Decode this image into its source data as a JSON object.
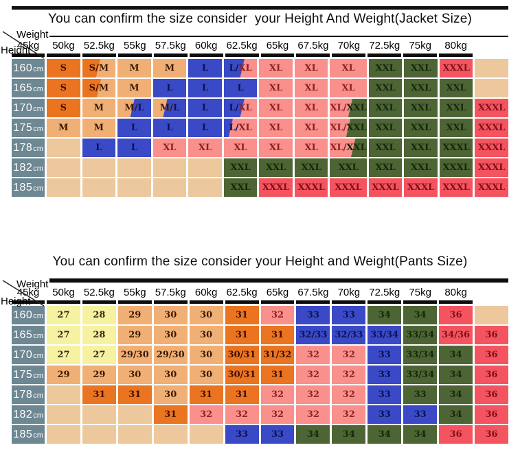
{
  "colors": {
    "bg": {
      "orange": "#EA7420",
      "tan": "#F0AF74",
      "yellow": "#F6F2A2",
      "blue": "#3A49C6",
      "pink": "#F9908C",
      "green": "#4D6534",
      "red": "#F4545F",
      "wheat": "#ECC89C",
      "slate": "#6D8793"
    },
    "text": {
      "orange": "#3F0E02",
      "tan": "#3A1A02",
      "yellow": "#3A2A14",
      "blue": "#0B1150",
      "pink": "#8C2024",
      "green": "#16260C",
      "red": "#7E1119",
      "wheat": "#ECC89C",
      "slate": "#FFFFFF"
    }
  },
  "jacket_table": {
    "title": "You can confirm the size consider  your Height And Weight(Jacket Size)",
    "corner": {
      "weight_label": "Weight",
      "height_label": "Height"
    },
    "height_unit": "cm",
    "weights": [
      "45kg",
      "50kg",
      "52.5kg",
      "55kg",
      "57.5kg",
      "60kg",
      "62.5kg",
      "65kg",
      "67.5kg",
      "70kg",
      "72.5kg",
      "75kg",
      "80kg"
    ],
    "rows": [
      {
        "height": "160",
        "cells": [
          {
            "v": "S",
            "c": "orange"
          },
          {
            "v": "S/M",
            "c": "split-orange-tan",
            "p": 48
          },
          {
            "v": "M",
            "c": "tan"
          },
          {
            "v": "M",
            "c": "tan"
          },
          {
            "v": "L",
            "c": "blue"
          },
          {
            "v": "L/XL",
            "c": "split-blue-pink",
            "p": 55
          },
          {
            "v": "XL",
            "c": "pink"
          },
          {
            "v": "XL",
            "c": "pink"
          },
          {
            "v": "XL",
            "c": "pink"
          },
          {
            "v": "XXL",
            "c": "green"
          },
          {
            "v": "XXL",
            "c": "green"
          },
          {
            "v": "XXXL",
            "c": "red"
          },
          {
            "v": "",
            "c": "wheat"
          }
        ]
      },
      {
        "height": "165",
        "cells": [
          {
            "v": "S",
            "c": "orange"
          },
          {
            "v": "S/M",
            "c": "split-orange-tan",
            "p": 50
          },
          {
            "v": "M",
            "c": "tan"
          },
          {
            "v": "L",
            "c": "blue"
          },
          {
            "v": "L",
            "c": "blue"
          },
          {
            "v": "L",
            "c": "blue"
          },
          {
            "v": "XL",
            "c": "pink"
          },
          {
            "v": "XL",
            "c": "pink"
          },
          {
            "v": "XL",
            "c": "pink"
          },
          {
            "v": "XXL",
            "c": "green"
          },
          {
            "v": "XXL",
            "c": "green"
          },
          {
            "v": "XXL",
            "c": "green"
          },
          {
            "v": "",
            "c": "wheat"
          }
        ]
      },
      {
        "height": "170",
        "cells": [
          {
            "v": "S",
            "c": "orange"
          },
          {
            "v": "M",
            "c": "tan"
          },
          {
            "v": "M/L",
            "c": "split-tan-blue",
            "p": 45
          },
          {
            "v": "M/L",
            "c": "split-tan-blue",
            "p": 38
          },
          {
            "v": "L",
            "c": "blue"
          },
          {
            "v": "L/XL",
            "c": "split-blue-pink",
            "p": 55
          },
          {
            "v": "XL",
            "c": "pink"
          },
          {
            "v": "XL",
            "c": "pink"
          },
          {
            "v": "XL/XXL",
            "c": "split-pink-green",
            "p": 55
          },
          {
            "v": "XXL",
            "c": "green"
          },
          {
            "v": "XXL",
            "c": "green"
          },
          {
            "v": "XXL",
            "c": "green"
          },
          {
            "v": "XXXL",
            "c": "red"
          }
        ]
      },
      {
        "height": "175",
        "cells": [
          {
            "v": "M",
            "c": "tan"
          },
          {
            "v": "M",
            "c": "tan"
          },
          {
            "v": "L",
            "c": "blue"
          },
          {
            "v": "L",
            "c": "blue"
          },
          {
            "v": "L",
            "c": "blue"
          },
          {
            "v": "L/XL",
            "c": "split-blue-pink",
            "p": 24
          },
          {
            "v": "XL",
            "c": "pink"
          },
          {
            "v": "XL",
            "c": "pink"
          },
          {
            "v": "XL/XXL",
            "c": "split-pink-green",
            "p": 50
          },
          {
            "v": "XXL",
            "c": "green"
          },
          {
            "v": "XXL",
            "c": "green"
          },
          {
            "v": "XXL",
            "c": "green"
          },
          {
            "v": "XXXL",
            "c": "red"
          }
        ]
      },
      {
        "height": "178",
        "cells": [
          {
            "v": "",
            "c": "wheat"
          },
          {
            "v": "L",
            "c": "blue"
          },
          {
            "v": "L",
            "c": "blue"
          },
          {
            "v": "XL",
            "c": "pink"
          },
          {
            "v": "XL",
            "c": "pink"
          },
          {
            "v": "XL",
            "c": "pink"
          },
          {
            "v": "XL",
            "c": "pink"
          },
          {
            "v": "XL",
            "c": "pink"
          },
          {
            "v": "XL/XXL",
            "c": "split-pink-green",
            "p": 62
          },
          {
            "v": "XXL",
            "c": "green"
          },
          {
            "v": "XXL",
            "c": "green"
          },
          {
            "v": "XXXL",
            "c": "green"
          },
          {
            "v": "XXXL",
            "c": "red"
          }
        ]
      },
      {
        "height": "182",
        "cells": [
          {
            "v": "",
            "c": "wheat"
          },
          {
            "v": "",
            "c": "wheat"
          },
          {
            "v": "",
            "c": "wheat"
          },
          {
            "v": "",
            "c": "wheat"
          },
          {
            "v": "",
            "c": "wheat"
          },
          {
            "v": "XXL",
            "c": "green"
          },
          {
            "v": "XXL",
            "c": "green"
          },
          {
            "v": "XXL",
            "c": "green"
          },
          {
            "v": "XXL",
            "c": "green"
          },
          {
            "v": "XXL",
            "c": "green"
          },
          {
            "v": "XXL",
            "c": "green"
          },
          {
            "v": "XXXL",
            "c": "green"
          },
          {
            "v": "XXXL",
            "c": "red"
          }
        ]
      },
      {
        "height": "185",
        "cells": [
          {
            "v": "",
            "c": "wheat"
          },
          {
            "v": "",
            "c": "wheat"
          },
          {
            "v": "",
            "c": "wheat"
          },
          {
            "v": "",
            "c": "wheat"
          },
          {
            "v": "",
            "c": "wheat"
          },
          {
            "v": "XXL",
            "c": "green"
          },
          {
            "v": "XXXL",
            "c": "red"
          },
          {
            "v": "XXXL",
            "c": "red"
          },
          {
            "v": "XXXL",
            "c": "red"
          },
          {
            "v": "XXXL",
            "c": "red"
          },
          {
            "v": "XXXL",
            "c": "red"
          },
          {
            "v": "XXXL",
            "c": "red"
          },
          {
            "v": "XXXL",
            "c": "red"
          }
        ]
      }
    ]
  },
  "pants_table": {
    "title": "You can confirm the size consider your Height and Weight(Pants Size)",
    "corner": {
      "weight_label": "Weight",
      "height_label": "Height"
    },
    "height_unit": "cm",
    "weights": [
      "45kg",
      "50kg",
      "52.5kg",
      "55kg",
      "57.5kg",
      "60kg",
      "62.5kg",
      "65kg",
      "67.5kg",
      "70kg",
      "72.5kg",
      "75kg",
      "80kg"
    ],
    "rows": [
      {
        "height": "160",
        "cells": [
          {
            "v": "27",
            "c": "yellow"
          },
          {
            "v": "28",
            "c": "yellow"
          },
          {
            "v": "29",
            "c": "tan"
          },
          {
            "v": "30",
            "c": "tan"
          },
          {
            "v": "30",
            "c": "tan"
          },
          {
            "v": "31",
            "c": "orange"
          },
          {
            "v": "32",
            "c": "pink"
          },
          {
            "v": "33",
            "c": "blue"
          },
          {
            "v": "33",
            "c": "blue"
          },
          {
            "v": "34",
            "c": "green"
          },
          {
            "v": "34",
            "c": "green"
          },
          {
            "v": "36",
            "c": "red"
          },
          {
            "v": "",
            "c": "wheat"
          }
        ]
      },
      {
        "height": "165",
        "cells": [
          {
            "v": "27",
            "c": "yellow"
          },
          {
            "v": "28",
            "c": "yellow"
          },
          {
            "v": "29",
            "c": "tan"
          },
          {
            "v": "30",
            "c": "tan"
          },
          {
            "v": "30",
            "c": "tan"
          },
          {
            "v": "31",
            "c": "orange"
          },
          {
            "v": "31",
            "c": "orange"
          },
          {
            "v": "32/33",
            "c": "blue"
          },
          {
            "v": "32/33",
            "c": "blue"
          },
          {
            "v": "33/34",
            "c": "blue"
          },
          {
            "v": "33/34",
            "c": "green"
          },
          {
            "v": "34/36",
            "c": "red"
          },
          {
            "v": "36",
            "c": "red"
          }
        ]
      },
      {
        "height": "170",
        "cells": [
          {
            "v": "27",
            "c": "yellow"
          },
          {
            "v": "27",
            "c": "yellow"
          },
          {
            "v": "29/30",
            "c": "tan"
          },
          {
            "v": "29/30",
            "c": "tan"
          },
          {
            "v": "30",
            "c": "tan"
          },
          {
            "v": "30/31",
            "c": "orange"
          },
          {
            "v": "31/32",
            "c": "orange"
          },
          {
            "v": "32",
            "c": "pink"
          },
          {
            "v": "32",
            "c": "pink"
          },
          {
            "v": "33",
            "c": "blue"
          },
          {
            "v": "33/34",
            "c": "green"
          },
          {
            "v": "34",
            "c": "green"
          },
          {
            "v": "36",
            "c": "red"
          }
        ]
      },
      {
        "height": "175",
        "cells": [
          {
            "v": "29",
            "c": "tan"
          },
          {
            "v": "29",
            "c": "tan"
          },
          {
            "v": "30",
            "c": "tan"
          },
          {
            "v": "30",
            "c": "tan"
          },
          {
            "v": "30",
            "c": "tan"
          },
          {
            "v": "30/31",
            "c": "orange"
          },
          {
            "v": "31",
            "c": "orange"
          },
          {
            "v": "32",
            "c": "pink"
          },
          {
            "v": "32",
            "c": "pink"
          },
          {
            "v": "33",
            "c": "blue"
          },
          {
            "v": "33/34",
            "c": "green"
          },
          {
            "v": "34",
            "c": "green"
          },
          {
            "v": "36",
            "c": "red"
          }
        ]
      },
      {
        "height": "178",
        "cells": [
          {
            "v": "",
            "c": "wheat"
          },
          {
            "v": "31",
            "c": "orange"
          },
          {
            "v": "31",
            "c": "orange"
          },
          {
            "v": "30",
            "c": "tan"
          },
          {
            "v": "31",
            "c": "orange"
          },
          {
            "v": "31",
            "c": "orange"
          },
          {
            "v": "32",
            "c": "pink"
          },
          {
            "v": "32",
            "c": "pink"
          },
          {
            "v": "32",
            "c": "pink"
          },
          {
            "v": "33",
            "c": "blue"
          },
          {
            "v": "33",
            "c": "green"
          },
          {
            "v": "34",
            "c": "green"
          },
          {
            "v": "36",
            "c": "red"
          }
        ]
      },
      {
        "height": "182",
        "cells": [
          {
            "v": "",
            "c": "wheat"
          },
          {
            "v": "",
            "c": "wheat"
          },
          {
            "v": "",
            "c": "wheat"
          },
          {
            "v": "31",
            "c": "orange"
          },
          {
            "v": "32",
            "c": "pink"
          },
          {
            "v": "32",
            "c": "pink"
          },
          {
            "v": "32",
            "c": "pink"
          },
          {
            "v": "32",
            "c": "pink"
          },
          {
            "v": "32",
            "c": "pink"
          },
          {
            "v": "33",
            "c": "blue"
          },
          {
            "v": "33",
            "c": "blue"
          },
          {
            "v": "34",
            "c": "green"
          },
          {
            "v": "36",
            "c": "red"
          }
        ]
      },
      {
        "height": "185",
        "cells": [
          {
            "v": "",
            "c": "wheat"
          },
          {
            "v": "",
            "c": "wheat"
          },
          {
            "v": "",
            "c": "wheat"
          },
          {
            "v": "",
            "c": "wheat"
          },
          {
            "v": "",
            "c": "wheat"
          },
          {
            "v": "33",
            "c": "blue"
          },
          {
            "v": "33",
            "c": "blue"
          },
          {
            "v": "34",
            "c": "green"
          },
          {
            "v": "34",
            "c": "green"
          },
          {
            "v": "34",
            "c": "green"
          },
          {
            "v": "34",
            "c": "green"
          },
          {
            "v": "36",
            "c": "red"
          },
          {
            "v": "36",
            "c": "red"
          }
        ]
      }
    ]
  }
}
